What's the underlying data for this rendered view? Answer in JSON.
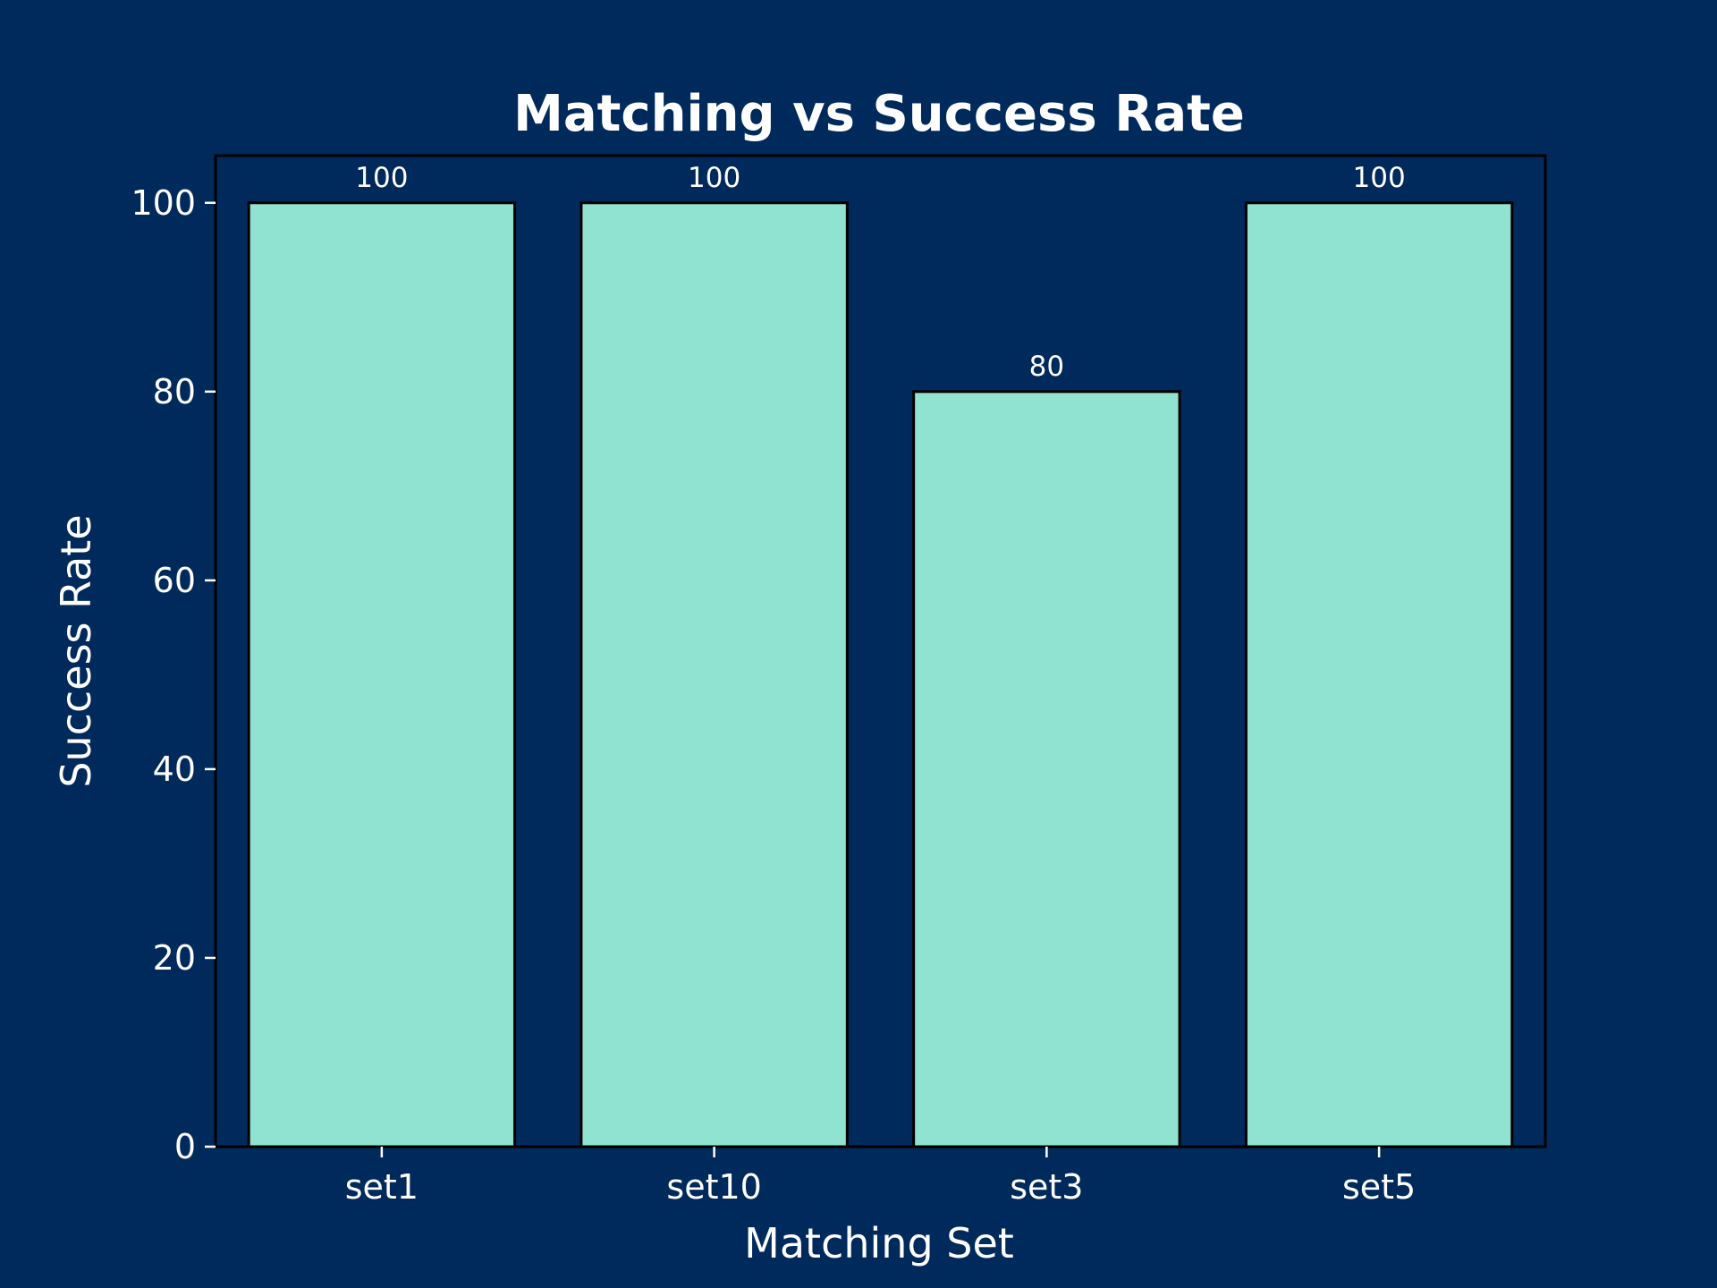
{
  "chart_data": {
    "type": "bar",
    "title": "Matching vs Success Rate",
    "xlabel": "Matching Set",
    "ylabel": "Success Rate",
    "categories": [
      "set1",
      "set10",
      "set3",
      "set5"
    ],
    "values": [
      100,
      100,
      80,
      100
    ],
    "data_labels": [
      "100",
      "100",
      "80",
      "100"
    ],
    "ylim": [
      0,
      105
    ],
    "yticks": [
      0,
      20,
      40,
      60,
      80,
      100
    ],
    "grid": false,
    "legend": "none"
  },
  "colors": {
    "background": "#002a5c",
    "bar_fill": "#91e3d1",
    "bar_edge": "#000000",
    "text": "#ffffff",
    "axes_edge": "#000000"
  }
}
